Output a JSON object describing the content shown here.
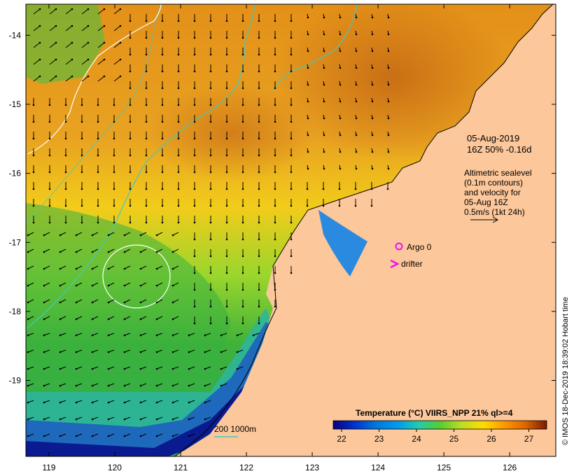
{
  "map": {
    "lon_ticks": [
      "119",
      "120",
      "121",
      "122",
      "123",
      "124",
      "125",
      "126"
    ],
    "lat_ticks": [
      "-14",
      "-15",
      "-16",
      "-17",
      "-18",
      "-19"
    ],
    "lon_range": [
      118.65,
      126.7
    ],
    "lat_range": [
      -20.1,
      -13.55
    ]
  },
  "info": {
    "date": "05-Aug-2019",
    "time_line": "16Z  50% -0.16d",
    "alt_line1": "Altimetric sealevel",
    "alt_line2": "(0.1m contours)",
    "alt_line3": "and velocity for",
    "alt_line4": "05-Aug 16Z",
    "alt_line5": "0.5m/s (1kt 24h)"
  },
  "legend": {
    "argo": "Argo 0",
    "drifter": "drifter",
    "isobath": "200  1000m"
  },
  "colorbar": {
    "title": "Temperature (°C) VIIRS_NPP 21% ql>=4",
    "ticks": [
      "22",
      "23",
      "24",
      "25",
      "26",
      "27"
    ],
    "colors": [
      "#0a0080",
      "#0033cc",
      "#0099ee",
      "#22ccaa",
      "#55cc33",
      "#bbdd22",
      "#ffdd00",
      "#ff9900",
      "#dd6600",
      "#aa2200",
      "#7a1a00"
    ]
  },
  "credit": "© IMOS 18-Dec-2019 18:39:02 Hobart time",
  "colors": {
    "land": "#fcc79a",
    "velocity_arrow": "#000000",
    "isobath": "#44c8c0",
    "sealevel_contour": "#ffffff",
    "argo": "#ee11ee"
  }
}
